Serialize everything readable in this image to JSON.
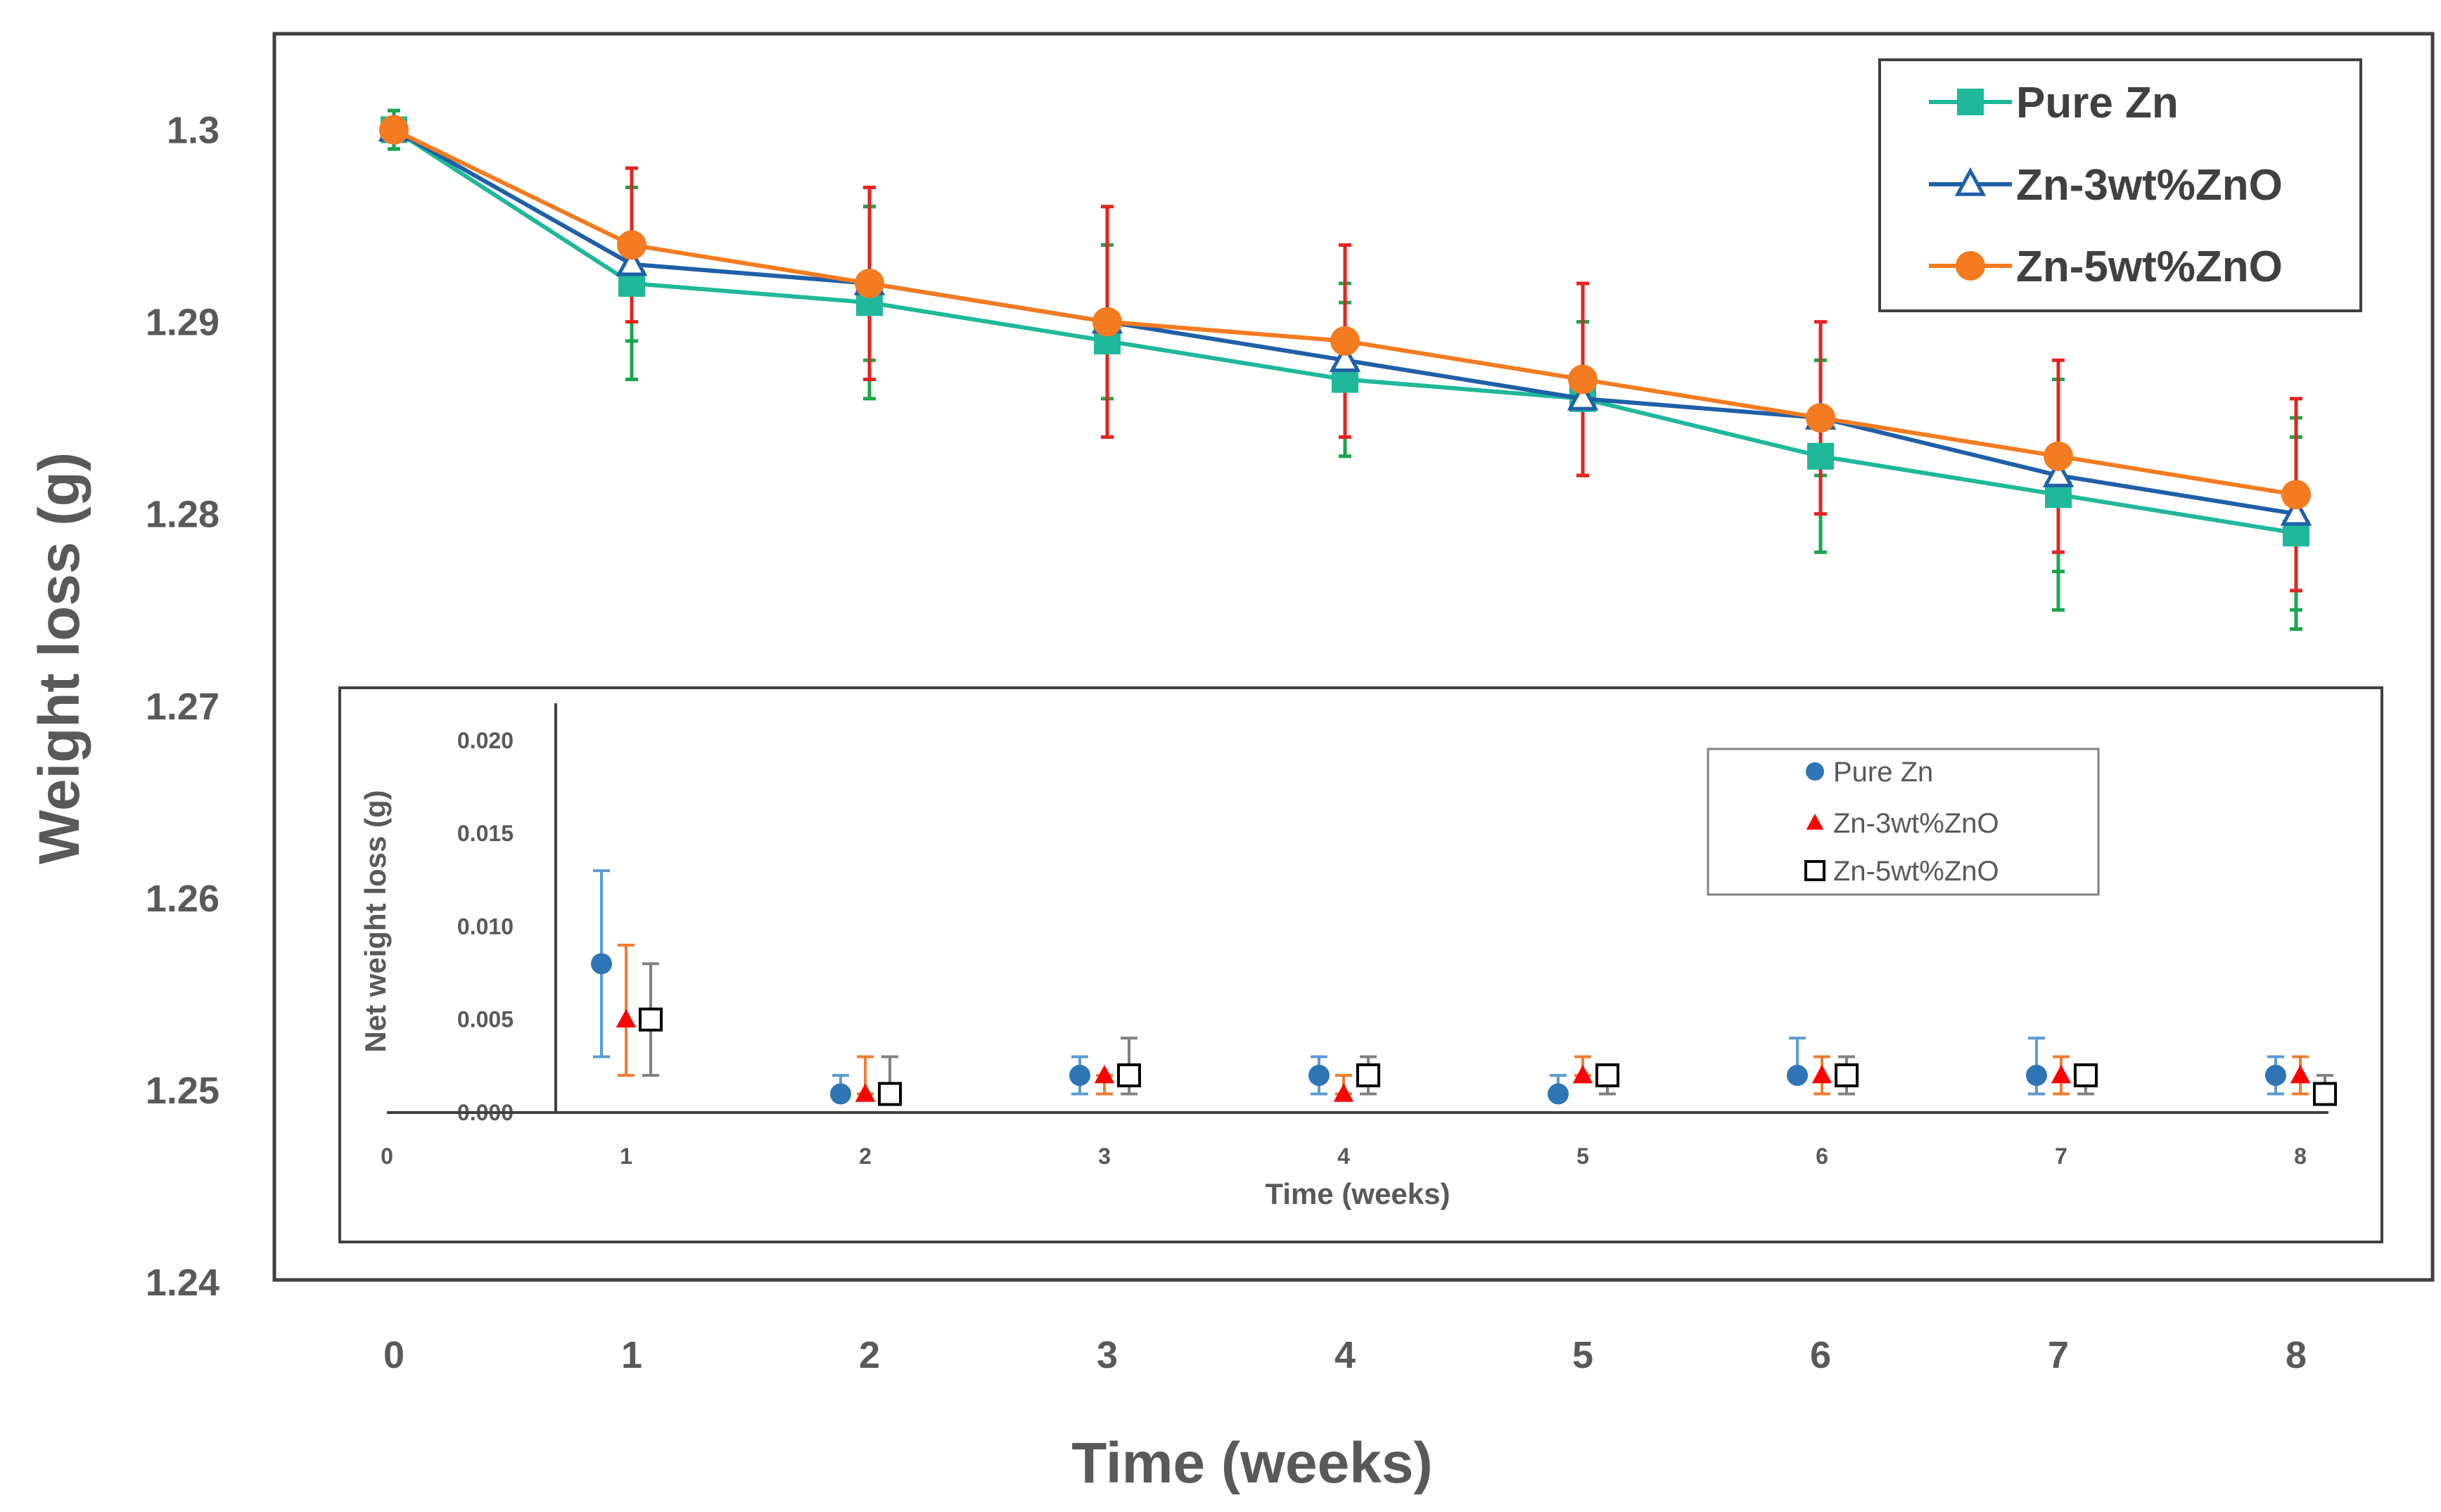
{
  "chart_data": [
    {
      "type": "line",
      "title": "",
      "xlabel": "Time (weeks)",
      "ylabel": "Weight loss (g)",
      "x": [
        0,
        1,
        2,
        3,
        4,
        5,
        6,
        7,
        8
      ],
      "x_ticks": [
        "0",
        "1",
        "2",
        "3",
        "4",
        "5",
        "6",
        "7",
        "8"
      ],
      "y_ticks": [
        "1.24",
        "1.25",
        "1.26",
        "1.27",
        "1.28",
        "1.29",
        "1.3"
      ],
      "xlim": [
        -0.6,
        8.6
      ],
      "ylim": [
        1.24,
        1.305
      ],
      "legend_position": "top-right",
      "series": [
        {
          "name": "Pure Zn",
          "color": "#1fb89a",
          "error_color": "#1aa64e",
          "marker": "square-filled",
          "values": [
            1.3,
            1.292,
            1.291,
            1.289,
            1.287,
            1.286,
            1.283,
            1.281,
            1.279
          ],
          "errors": [
            0.001,
            0.005,
            0.005,
            0.005,
            0.004,
            0.004,
            0.005,
            0.006,
            0.005
          ]
        },
        {
          "name": "Zn-3wt%ZnO",
          "color": "#1f5fa8",
          "error_color": "#1aa64e",
          "marker": "triangle-open",
          "values": [
            1.3,
            1.293,
            1.292,
            1.29,
            1.288,
            1.286,
            1.285,
            1.282,
            1.28
          ],
          "errors": [
            0.001,
            0.004,
            0.004,
            0.004,
            0.004,
            0.004,
            0.003,
            0.005,
            0.005
          ]
        },
        {
          "name": "Zn-5wt%ZnO",
          "color": "#f47b20",
          "error_color": "#e52421",
          "marker": "circle-filled",
          "values": [
            1.3,
            1.294,
            1.292,
            1.29,
            1.289,
            1.287,
            1.285,
            1.283,
            1.281
          ],
          "errors": [
            0.0,
            0.004,
            0.005,
            0.006,
            0.005,
            0.005,
            0.005,
            0.005,
            0.005
          ]
        }
      ]
    },
    {
      "type": "scatter",
      "title": "",
      "xlabel": "Time (weeks)",
      "ylabel": "Net weight loss (g)",
      "x_ticks": [
        "0",
        "1",
        "2",
        "3",
        "4",
        "5",
        "6",
        "7",
        "8"
      ],
      "y_ticks": [
        "0.000",
        "0.005",
        "0.010",
        "0.015",
        "0.020"
      ],
      "xlim": [
        0,
        8.3
      ],
      "ylim": [
        0,
        0.022
      ],
      "legend_position": "top-right",
      "series": [
        {
          "name": "Pure Zn",
          "color": "#2e75b6",
          "error_color": "#5b9bd5",
          "marker": "circle-filled",
          "x": [
            1,
            2,
            3,
            4,
            5,
            6,
            7,
            8
          ],
          "values": [
            0.008,
            0.001,
            0.002,
            0.002,
            0.001,
            0.002,
            0.002,
            0.002
          ],
          "err_low": [
            0.003,
            0.001,
            0.001,
            0.001,
            0.001,
            0.002,
            0.001,
            0.001
          ],
          "err_high": [
            0.013,
            0.002,
            0.003,
            0.003,
            0.002,
            0.004,
            0.004,
            0.003
          ]
        },
        {
          "name": "Zn-3wt%ZnO",
          "color": "#ff0000",
          "error_color": "#ed7d31",
          "marker": "triangle-filled",
          "x": [
            1,
            2,
            3,
            4,
            5,
            6,
            7,
            8
          ],
          "values": [
            0.005,
            0.001,
            0.002,
            0.001,
            0.002,
            0.002,
            0.002,
            0.002
          ],
          "err_low": [
            0.002,
            0.001,
            0.001,
            0.001,
            0.002,
            0.001,
            0.001,
            0.001
          ],
          "err_high": [
            0.009,
            0.003,
            0.002,
            0.002,
            0.003,
            0.003,
            0.003,
            0.003
          ]
        },
        {
          "name": "Zn-5wt%ZnO",
          "color": "#000000",
          "error_color": "#808080",
          "marker": "square-open",
          "x": [
            1,
            2,
            3,
            4,
            5,
            6,
            7,
            8
          ],
          "values": [
            0.005,
            0.001,
            0.002,
            0.002,
            0.002,
            0.002,
            0.002,
            0.001
          ],
          "err_low": [
            0.002,
            0.001,
            0.001,
            0.001,
            0.001,
            0.001,
            0.001,
            0.001
          ],
          "err_high": [
            0.008,
            0.003,
            0.004,
            0.003,
            0.002,
            0.003,
            0.002,
            0.002
          ]
        }
      ]
    }
  ]
}
